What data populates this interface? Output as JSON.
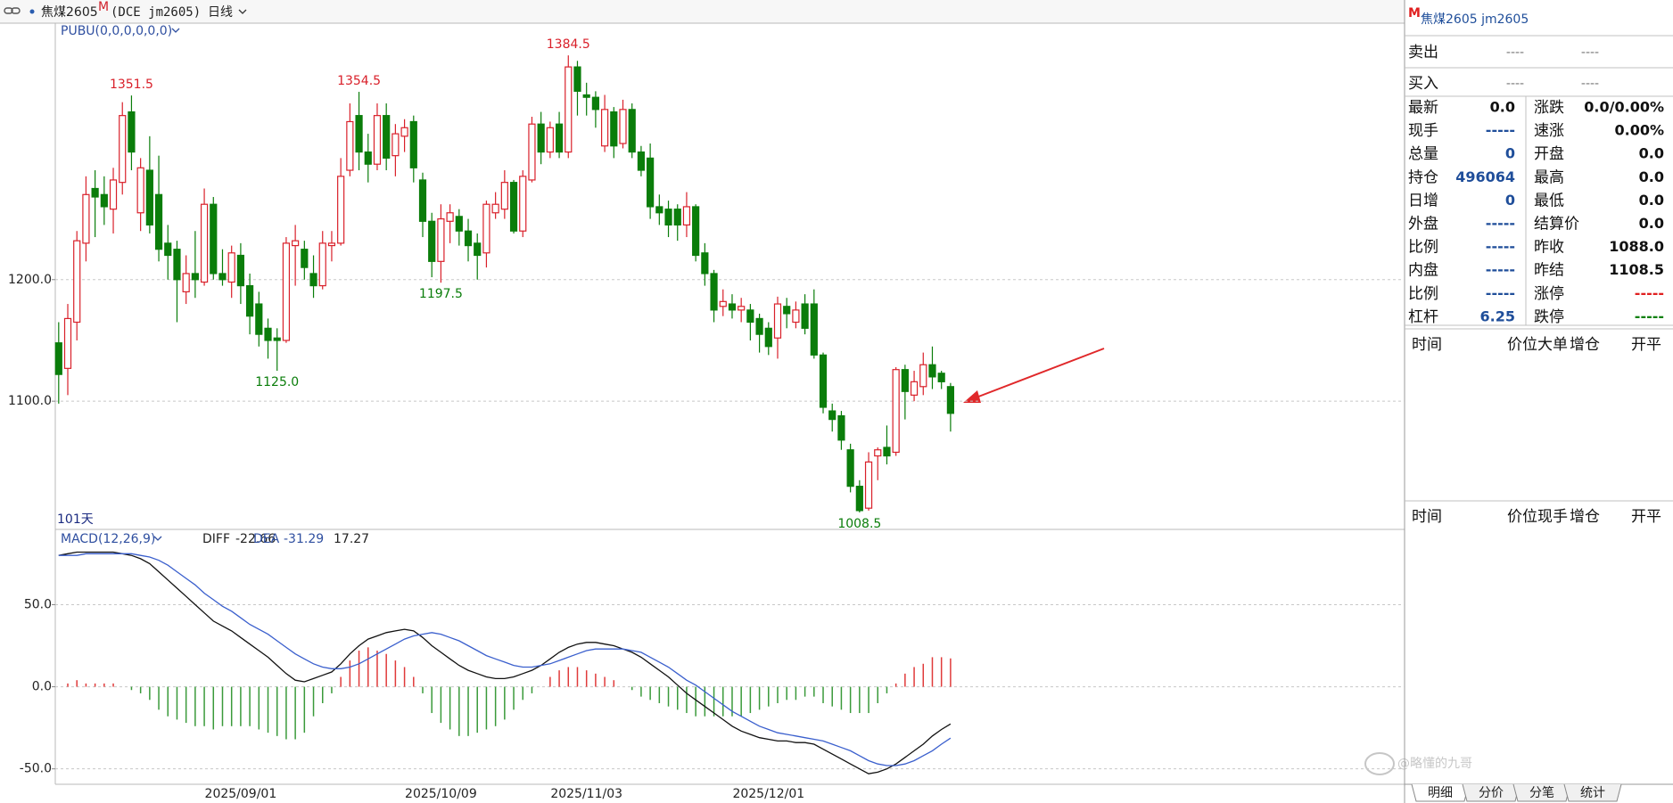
{
  "header": {
    "symbol": "焦煤2605",
    "badge": "M",
    "market": "(DCE jm2605)",
    "period": "日线"
  },
  "watermark": "@略懂的九哥",
  "chart_data": [
    {
      "type": "candlestick",
      "indicator": "PUBU(0,0,0,0,0,0)",
      "bar_count": "101天",
      "colors": {
        "up": "#d9202a",
        "down": "#0a7d0a"
      },
      "ylim": [
        996,
        1411
      ],
      "yticks": [
        {
          "value": 1100,
          "label": "1100.0"
        },
        {
          "value": 1200,
          "label": "1200.0"
        }
      ],
      "grid": true,
      "open": [
        1148,
        1127,
        1165,
        1230,
        1275,
        1270,
        1258,
        1280,
        1338,
        1255,
        1290,
        1270,
        1230,
        1225,
        1190,
        1205,
        1198,
        1262,
        1205,
        1198,
        1220,
        1195,
        1180,
        1160,
        1152,
        1150,
        1228,
        1225,
        1205,
        1195,
        1228,
        1230,
        1290,
        1335,
        1305,
        1295,
        1335,
        1302,
        1318,
        1330,
        1282,
        1248,
        1215,
        1248,
        1252,
        1240,
        1230,
        1222,
        1255,
        1258,
        1280,
        1240,
        1282,
        1328,
        1305,
        1328,
        1305,
        1375,
        1352,
        1350,
        1310,
        1338,
        1312,
        1340,
        1305,
        1300,
        1260,
        1258,
        1258,
        1245,
        1260,
        1222,
        1205,
        1178,
        1180,
        1175,
        1175,
        1168,
        1160,
        1152,
        1178,
        1165,
        1180,
        1180,
        1138,
        1092,
        1088,
        1060,
        1030,
        1012,
        1055,
        1062,
        1058,
        1126,
        1105,
        1112,
        1130,
        1123,
        1112
      ],
      "high": [
        1165,
        1180,
        1240,
        1285,
        1290,
        1285,
        1292,
        1346,
        1351.5,
        1300,
        1318,
        1302,
        1245,
        1232,
        1220,
        1240,
        1275,
        1268,
        1225,
        1228,
        1230,
        1205,
        1190,
        1168,
        1160,
        1235,
        1245,
        1232,
        1220,
        1240,
        1240,
        1300,
        1345,
        1354.5,
        1320,
        1345,
        1345,
        1328,
        1332,
        1335,
        1288,
        1255,
        1262,
        1262,
        1258,
        1250,
        1238,
        1265,
        1272,
        1290,
        1282,
        1290,
        1334,
        1338,
        1330,
        1338,
        1384.5,
        1380,
        1362,
        1355,
        1352,
        1342,
        1348,
        1345,
        1310,
        1312,
        1270,
        1265,
        1262,
        1272,
        1262,
        1230,
        1208,
        1192,
        1188,
        1185,
        1180,
        1172,
        1165,
        1186,
        1185,
        1182,
        1188,
        1192,
        1140,
        1098,
        1092,
        1065,
        1035,
        1058,
        1062,
        1080,
        1128,
        1130,
        1125,
        1140,
        1145,
        1125,
        1115
      ],
      "low": [
        1098,
        1105,
        1150,
        1215,
        1235,
        1245,
        1238,
        1270,
        1290,
        1240,
        1238,
        1215,
        1200,
        1165,
        1180,
        1185,
        1195,
        1200,
        1195,
        1185,
        1180,
        1155,
        1145,
        1135,
        1125,
        1148,
        1195,
        1200,
        1185,
        1192,
        1215,
        1228,
        1285,
        1290,
        1280,
        1290,
        1290,
        1285,
        1305,
        1280,
        1235,
        1202,
        1197.5,
        1230,
        1228,
        1215,
        1200,
        1210,
        1250,
        1250,
        1238,
        1235,
        1280,
        1295,
        1300,
        1300,
        1300,
        1335,
        1335,
        1325,
        1305,
        1300,
        1308,
        1300,
        1285,
        1250,
        1245,
        1235,
        1232,
        1235,
        1215,
        1195,
        1165,
        1170,
        1168,
        1165,
        1150,
        1140,
        1138,
        1135,
        1160,
        1160,
        1155,
        1135,
        1090,
        1075,
        1060,
        1025,
        1008.5,
        1010,
        1035,
        1048,
        1055,
        1085,
        1100,
        1105,
        1110,
        1110,
        1075
      ],
      "close": [
        1122,
        1168,
        1232,
        1270,
        1268,
        1260,
        1282,
        1335,
        1305,
        1292,
        1245,
        1225,
        1220,
        1200,
        1205,
        1200,
        1262,
        1205,
        1200,
        1222,
        1195,
        1170,
        1155,
        1150,
        1150,
        1230,
        1232,
        1210,
        1195,
        1230,
        1230,
        1285,
        1330,
        1305,
        1295,
        1335,
        1300,
        1320,
        1325,
        1292,
        1248,
        1215,
        1250,
        1255,
        1240,
        1228,
        1220,
        1262,
        1262,
        1280,
        1240,
        1285,
        1328,
        1305,
        1325,
        1305,
        1375,
        1355,
        1350,
        1340,
        1340,
        1310,
        1340,
        1305,
        1290,
        1260,
        1255,
        1245,
        1245,
        1260,
        1220,
        1205,
        1175,
        1182,
        1175,
        1178,
        1165,
        1155,
        1145,
        1180,
        1172,
        1175,
        1160,
        1138,
        1095,
        1085,
        1068,
        1030,
        1010,
        1050,
        1060,
        1055,
        1126,
        1108,
        1116,
        1130,
        1120,
        1116,
        1090
      ],
      "high_labels": [
        1351.5,
        1354.5,
        1384.5
      ],
      "low_labels": [
        {
          "value": 1125,
          "label": "1125.0"
        },
        1197.5,
        1008.5
      ]
    },
    {
      "type": "macd",
      "title": "MACD(12,26,9)",
      "ylim": [
        -59.4,
        95.3
      ],
      "yticks": [
        {
          "value": 50,
          "label": "50.0"
        },
        {
          "value": 0,
          "label": "0.0"
        },
        {
          "value": -50,
          "label": "-50.0"
        }
      ],
      "grid": true,
      "hist_colors": {
        "up": "#e03a3a",
        "down": "#3a9a3a"
      },
      "categories": [
        null,
        null,
        null,
        null,
        null,
        null,
        null,
        null,
        null,
        null,
        null,
        null,
        null,
        null,
        null,
        null,
        null,
        null,
        null,
        null,
        "2025/09/01",
        null,
        null,
        null,
        null,
        null,
        null,
        null,
        null,
        null,
        null,
        null,
        null,
        null,
        null,
        null,
        null,
        null,
        null,
        null,
        null,
        null,
        "2025/10/09",
        null,
        null,
        null,
        null,
        null,
        null,
        null,
        null,
        null,
        null,
        null,
        null,
        null,
        null,
        null,
        "2025/11/03",
        null,
        null,
        null,
        null,
        null,
        null,
        null,
        null,
        null,
        null,
        null,
        null,
        null,
        null,
        null,
        null,
        null,
        null,
        null,
        "2025/12/01",
        null,
        null,
        null,
        null,
        null,
        null,
        null,
        null,
        null,
        null,
        null,
        null,
        null,
        null,
        null,
        null,
        null,
        null,
        null,
        null
      ],
      "series": [
        {
          "name": "DIFF",
          "color": "#111111",
          "values": [
            80,
            81,
            82,
            82,
            82,
            82,
            82,
            81,
            80,
            78,
            75,
            70,
            65,
            60,
            55,
            50,
            45,
            40,
            37,
            34,
            30,
            26,
            22,
            18,
            13,
            8,
            4,
            3,
            5,
            7,
            9,
            14,
            20,
            25,
            29,
            31,
            33,
            34,
            35,
            34,
            30,
            25,
            21,
            17,
            13,
            10,
            8,
            6,
            5,
            5,
            6,
            8,
            10,
            13,
            17,
            21,
            24,
            26,
            27,
            27,
            26,
            25,
            23,
            21,
            18,
            14,
            10,
            6,
            1,
            -4,
            -8,
            -12,
            -16,
            -20,
            -24,
            -27,
            -29,
            -31,
            -32,
            -33,
            -33,
            -34,
            -34,
            -35,
            -38,
            -41,
            -44,
            -47,
            -50,
            -53,
            -52,
            -50,
            -47,
            -43,
            -39,
            -35,
            -30,
            -26,
            -22.66
          ]
        },
        {
          "name": "DEA",
          "color": "#3a5fcd",
          "values": [
            80,
            80,
            80,
            81,
            81,
            81,
            81,
            81,
            81,
            80,
            79,
            77,
            74,
            70,
            66,
            62,
            57,
            53,
            49,
            46,
            42,
            38,
            35,
            32,
            28,
            24,
            20,
            17,
            14,
            12,
            11,
            11,
            12,
            14,
            17,
            20,
            23,
            26,
            29,
            31,
            32,
            33,
            32,
            30,
            28,
            25,
            22,
            19,
            17,
            15,
            13,
            12,
            12,
            13,
            14,
            16,
            18,
            20,
            22,
            23,
            23,
            23,
            23,
            22,
            21,
            18,
            15,
            12,
            8,
            4,
            1,
            -3,
            -7,
            -11,
            -15,
            -18,
            -21,
            -24,
            -26,
            -28,
            -29,
            -30,
            -31,
            -32,
            -33,
            -35,
            -37,
            -39,
            -42,
            -45,
            -47,
            -48,
            -48,
            -47,
            -45,
            -42,
            -39,
            -35,
            -31.29
          ]
        }
      ],
      "histogram": [
        0,
        2,
        4,
        2,
        2,
        2,
        2,
        0,
        -2,
        -4,
        -8,
        -14,
        -18,
        -20,
        -22,
        -24,
        -24,
        -26,
        -24,
        -24,
        -24,
        -24,
        -26,
        -28,
        -30,
        -32,
        -32,
        -28,
        -18,
        -10,
        -4,
        6,
        16,
        22,
        24,
        22,
        20,
        16,
        12,
        6,
        -4,
        -16,
        -22,
        -26,
        -30,
        -30,
        -28,
        -26,
        -24,
        -20,
        -14,
        -8,
        -4,
        0,
        6,
        10,
        12,
        12,
        10,
        8,
        6,
        4,
        0,
        -2,
        -6,
        -8,
        -10,
        -12,
        -14,
        -16,
        -18,
        -18,
        -18,
        -18,
        -18,
        -18,
        -16,
        -14,
        -12,
        -10,
        -8,
        -8,
        -6,
        -6,
        -10,
        -12,
        -14,
        -16,
        -16,
        -16,
        -10,
        -4,
        2,
        8,
        12,
        14,
        18,
        18,
        17.27
      ]
    }
  ],
  "quote_panel": {
    "badge": "M",
    "title": "焦煤2605  jm2605",
    "orders": [
      {
        "label": "卖出",
        "price": "----",
        "volume": "----"
      },
      {
        "label": "买入",
        "price": "----",
        "volume": "----"
      }
    ],
    "left": [
      {
        "label": "最新",
        "value": "0.0",
        "color": "#111111"
      },
      {
        "label": "现手",
        "value": "-----"
      },
      {
        "label": "总量",
        "value": 0
      },
      {
        "label": "持仓",
        "value": 496064
      },
      {
        "label": "日增",
        "value": 0
      },
      {
        "label": "外盘",
        "value": "-----"
      },
      {
        "label": "比例",
        "value": "-----"
      },
      {
        "label": "内盘",
        "value": "-----"
      },
      {
        "label": "比例",
        "value": "-----"
      },
      {
        "label": "杠杆",
        "value": 6.25
      }
    ],
    "right": [
      {
        "label": "涨跌",
        "value": "0.0/0.00%"
      },
      {
        "label": "速涨",
        "value": "0.00%"
      },
      {
        "label": "开盘",
        "value": "0.0"
      },
      {
        "label": "最高",
        "value": "0.0"
      },
      {
        "label": "最低",
        "value": "0.0"
      },
      {
        "label": "结算价",
        "value": "0.0"
      },
      {
        "label": "昨收",
        "value": "1088.0"
      },
      {
        "label": "昨结",
        "value": "1108.5"
      },
      {
        "label": "涨停",
        "value": "-----",
        "color": "#e02020"
      },
      {
        "label": "跌停",
        "value": "-----",
        "color": "#108010"
      }
    ],
    "table_1": [
      "时间",
      "价位",
      "大单",
      "增仓",
      "开平"
    ],
    "table_2": [
      "时间",
      "价位",
      "现手",
      "增仓",
      "开平"
    ],
    "tabs": [
      "明细",
      "分价",
      "分笔",
      "统计"
    ]
  }
}
